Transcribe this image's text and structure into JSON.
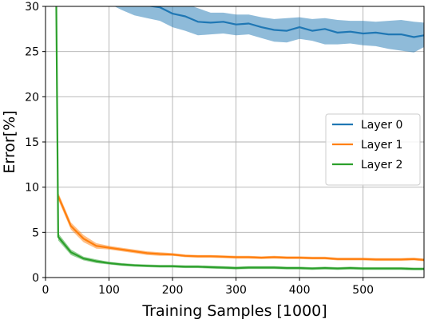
{
  "chart_data": {
    "type": "line",
    "xlabel": "Training Samples [1000]",
    "ylabel": "Error[%]",
    "xlim": [
      0,
      596
    ],
    "ylim": [
      0,
      30
    ],
    "xticks": [
      0,
      100,
      200,
      300,
      400,
      500
    ],
    "yticks": [
      0,
      5,
      10,
      15,
      20,
      25,
      30
    ],
    "grid": true,
    "legend_position": "center-right",
    "series": [
      {
        "name": "Layer 0",
        "color": "#1f77b4",
        "x": [
          100,
          120,
          140,
          160,
          180,
          200,
          220,
          240,
          260,
          280,
          300,
          320,
          340,
          360,
          380,
          400,
          420,
          440,
          460,
          480,
          500,
          520,
          540,
          560,
          580,
          596
        ],
        "values": [
          31.2,
          30.7,
          30.3,
          30.1,
          29.9,
          29.2,
          28.9,
          28.3,
          28.2,
          28.3,
          28.0,
          28.1,
          27.7,
          27.4,
          27.3,
          27.7,
          27.3,
          27.5,
          27.1,
          27.2,
          27.0,
          27.1,
          26.9,
          26.9,
          26.6,
          26.8
        ],
        "upper": [
          31.8,
          31.8,
          31.7,
          31.6,
          31.3,
          30.7,
          30.3,
          29.8,
          29.3,
          29.3,
          29.1,
          29.1,
          28.8,
          28.6,
          28.7,
          28.8,
          28.6,
          28.7,
          28.5,
          28.4,
          28.4,
          28.3,
          28.4,
          28.5,
          28.3,
          28.2
        ],
        "lower": [
          30.3,
          29.6,
          29.0,
          28.7,
          28.4,
          27.7,
          27.3,
          26.8,
          26.9,
          27.0,
          26.8,
          26.9,
          26.5,
          26.1,
          26.0,
          26.4,
          26.2,
          25.8,
          25.8,
          25.9,
          25.7,
          25.6,
          25.3,
          25.1,
          24.9,
          25.5
        ]
      },
      {
        "name": "Layer 1",
        "color": "#ff7f0e",
        "x": [
          20,
          40,
          60,
          80,
          100,
          120,
          140,
          160,
          180,
          200,
          220,
          240,
          260,
          280,
          300,
          320,
          340,
          360,
          380,
          400,
          420,
          440,
          460,
          480,
          500,
          520,
          540,
          560,
          580,
          596
        ],
        "values": [
          9.0,
          5.7,
          4.3,
          3.5,
          3.3,
          3.1,
          2.9,
          2.7,
          2.6,
          2.55,
          2.4,
          2.35,
          2.35,
          2.3,
          2.25,
          2.25,
          2.2,
          2.25,
          2.2,
          2.2,
          2.15,
          2.15,
          2.05,
          2.05,
          2.05,
          2.0,
          2.0,
          2.0,
          2.05,
          1.95
        ],
        "upper": [
          9.4,
          6.1,
          4.7,
          3.8,
          3.5,
          3.3,
          3.1,
          2.9,
          2.8,
          2.7,
          2.55,
          2.5,
          2.5,
          2.45,
          2.4,
          2.4,
          2.35,
          2.4,
          2.35,
          2.35,
          2.3,
          2.3,
          2.2,
          2.2,
          2.2,
          2.15,
          2.15,
          2.15,
          2.2,
          2.1
        ],
        "lower": [
          8.6,
          5.3,
          3.9,
          3.2,
          3.1,
          2.9,
          2.7,
          2.5,
          2.4,
          2.4,
          2.25,
          2.2,
          2.2,
          2.15,
          2.1,
          2.1,
          2.05,
          2.1,
          2.05,
          2.05,
          2.0,
          2.0,
          1.9,
          1.9,
          1.9,
          1.85,
          1.85,
          1.85,
          1.9,
          1.8
        ]
      },
      {
        "name": "Layer 2",
        "color": "#2ca02c",
        "x": [
          17,
          20,
          40,
          60,
          80,
          100,
          120,
          140,
          160,
          180,
          200,
          220,
          240,
          260,
          280,
          300,
          320,
          340,
          360,
          380,
          400,
          420,
          440,
          460,
          480,
          500,
          520,
          540,
          560,
          580,
          596
        ],
        "values": [
          30.0,
          4.5,
          2.8,
          2.1,
          1.8,
          1.6,
          1.45,
          1.35,
          1.3,
          1.25,
          1.25,
          1.2,
          1.2,
          1.15,
          1.1,
          1.05,
          1.1,
          1.1,
          1.1,
          1.05,
          1.05,
          1.0,
          1.05,
          1.0,
          1.05,
          1.0,
          1.0,
          1.0,
          1.0,
          0.95,
          0.95
        ],
        "upper": [
          30.0,
          4.9,
          3.1,
          2.3,
          2.0,
          1.75,
          1.6,
          1.5,
          1.45,
          1.4,
          1.4,
          1.35,
          1.35,
          1.3,
          1.25,
          1.2,
          1.25,
          1.25,
          1.25,
          1.2,
          1.2,
          1.15,
          1.2,
          1.15,
          1.2,
          1.15,
          1.15,
          1.15,
          1.15,
          1.1,
          1.1
        ],
        "lower": [
          30.0,
          4.1,
          2.5,
          1.9,
          1.6,
          1.45,
          1.3,
          1.2,
          1.15,
          1.1,
          1.1,
          1.05,
          1.05,
          1.0,
          0.95,
          0.9,
          0.95,
          0.95,
          0.95,
          0.9,
          0.9,
          0.85,
          0.9,
          0.85,
          0.9,
          0.85,
          0.85,
          0.85,
          0.85,
          0.8,
          0.8
        ]
      }
    ]
  }
}
